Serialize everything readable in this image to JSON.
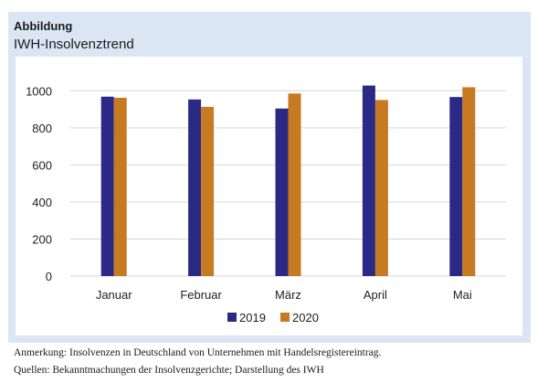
{
  "header": {
    "label": "Abbildung",
    "title": "IWH-Insolvenztrend"
  },
  "notes": {
    "remark": "Anmerkung: Insolvenzen in Deutschland von Unternehmen mit Handelsregistereintrag.",
    "sources": "Quellen: Bekanntmachungen der Insolvenzgerichte; Darstellung des IWH"
  },
  "colors": {
    "panel_background": "#dbe6f4",
    "series_2019": "#2a2a86",
    "series_2020": "#c67a22",
    "grid": "#d6d6d6"
  },
  "chart_data": {
    "type": "bar",
    "categories": [
      "Januar",
      "Februar",
      "März",
      "April",
      "Mai"
    ],
    "series": [
      {
        "name": "2019",
        "values": [
          968,
          953,
          904,
          1028,
          966
        ]
      },
      {
        "name": "2020",
        "values": [
          962,
          913,
          985,
          950,
          1019
        ]
      }
    ],
    "ylim": [
      0,
      1100
    ],
    "yticks": [
      0,
      200,
      400,
      600,
      800,
      1000
    ],
    "grid": true,
    "legend": "bottom-center"
  }
}
